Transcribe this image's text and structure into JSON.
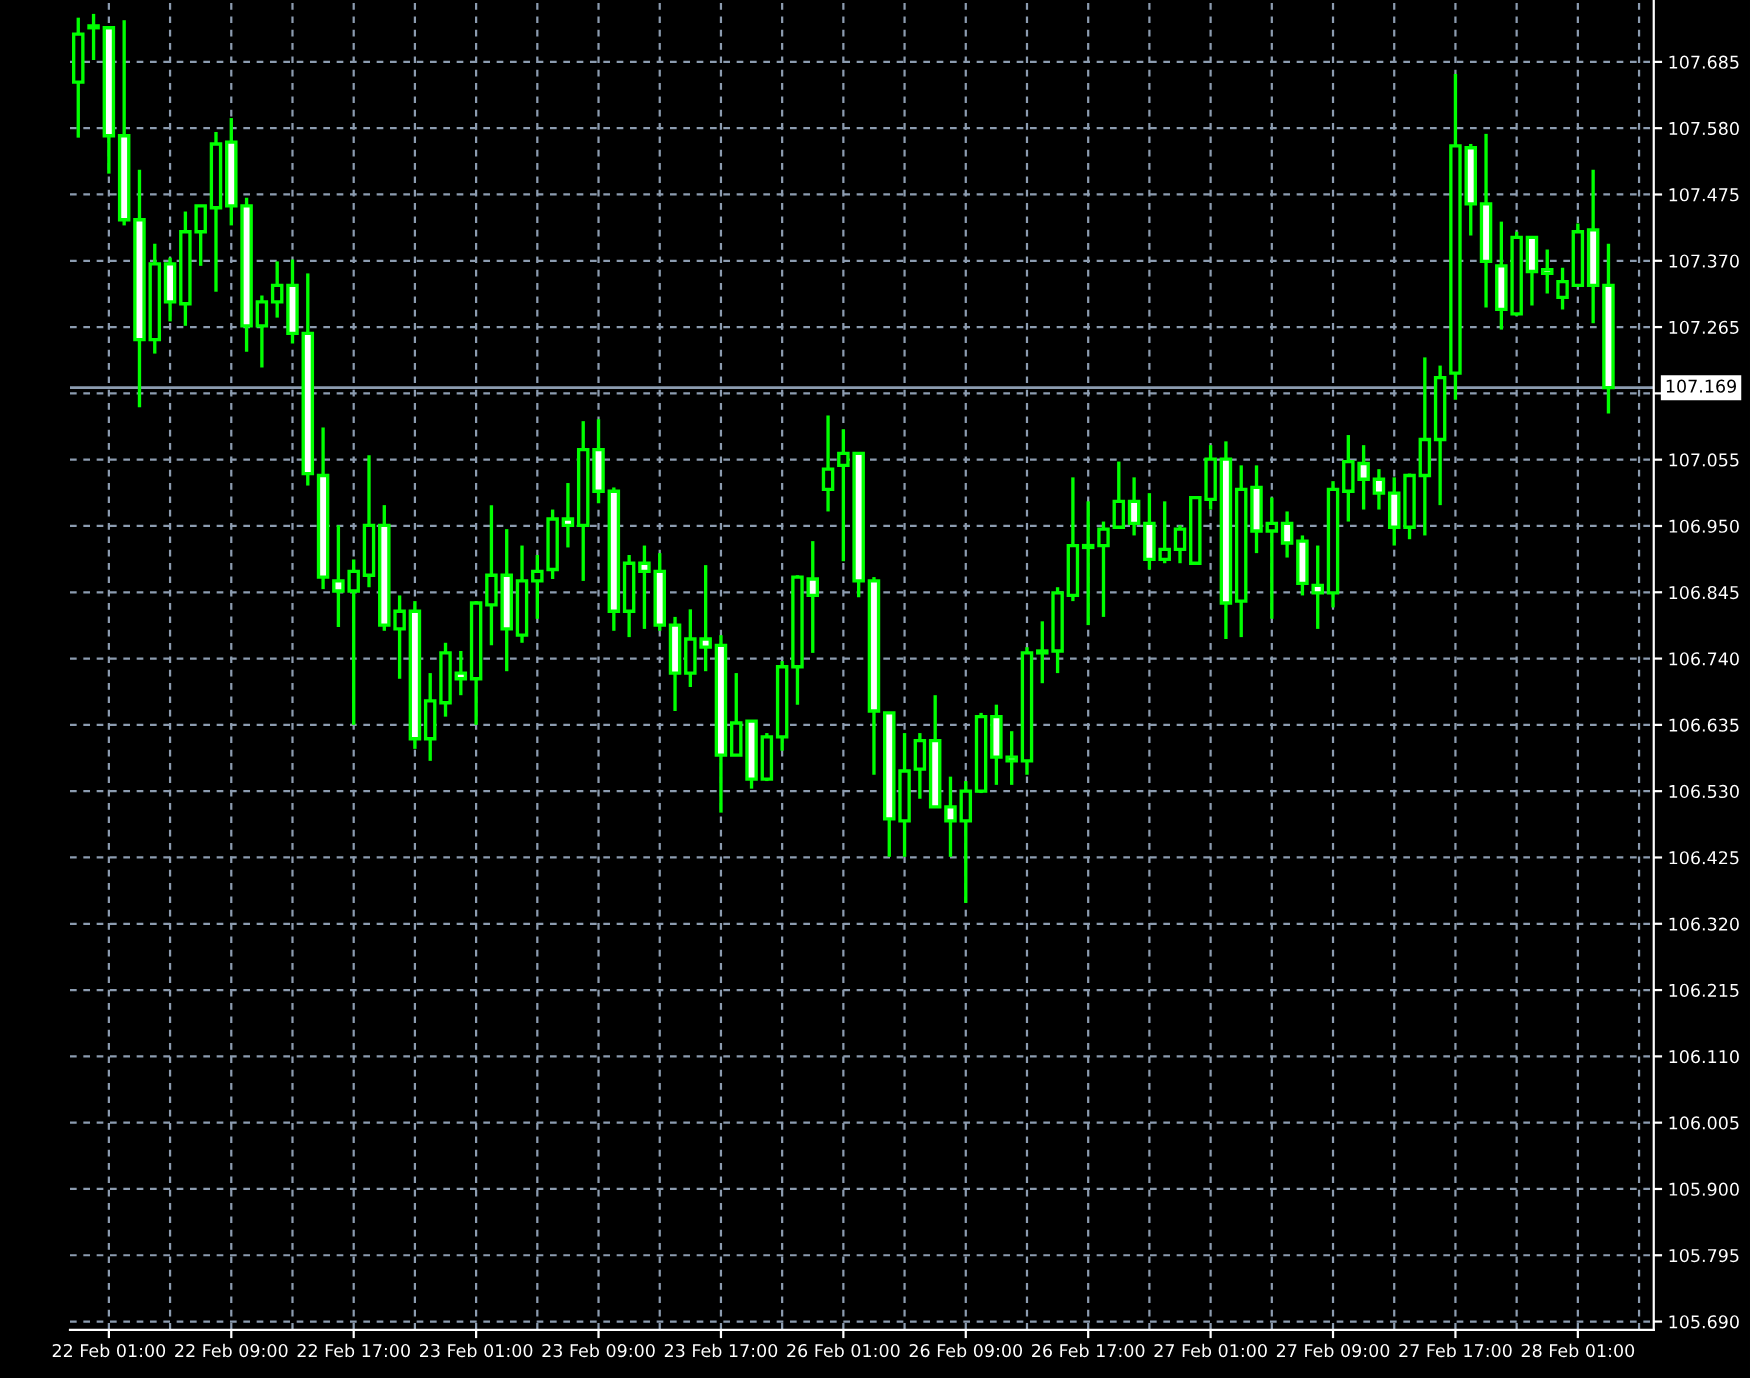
{
  "chart_data": {
    "type": "candlestick",
    "categories": [
      null,
      null,
      "22 Feb 01:00",
      null,
      null,
      null,
      null,
      null,
      null,
      null,
      "22 Feb 09:00",
      null,
      null,
      null,
      null,
      null,
      null,
      null,
      "22 Feb 17:00",
      null,
      null,
      null,
      null,
      null,
      null,
      null,
      "23 Feb 01:00",
      null,
      null,
      null,
      null,
      null,
      null,
      null,
      "23 Feb 09:00",
      null,
      null,
      null,
      null,
      null,
      null,
      null,
      "23 Feb 17:00",
      null,
      null,
      null,
      null,
      null,
      null,
      null,
      "26 Feb 01:00",
      null,
      null,
      null,
      null,
      null,
      null,
      null,
      "26 Feb 09:00",
      null,
      null,
      null,
      null,
      null,
      null,
      null,
      "26 Feb 17:00",
      null,
      null,
      null,
      null,
      null,
      null,
      null,
      "27 Feb 01:00",
      null,
      null,
      null,
      null,
      null,
      null,
      null,
      "27 Feb 09:00",
      null,
      null,
      null,
      null,
      null,
      null,
      null,
      "27 Feb 17:00",
      null,
      null,
      null,
      null,
      null,
      null,
      null,
      "28 Feb 01:00",
      null,
      null
    ],
    "ohlc": [
      [
        107.653,
        107.755,
        107.565,
        107.729
      ],
      [
        107.742,
        107.761,
        107.688,
        107.739
      ],
      [
        107.739,
        107.739,
        107.508,
        107.568
      ],
      [
        107.568,
        107.751,
        107.426,
        107.435
      ],
      [
        107.435,
        107.514,
        107.138,
        107.245
      ],
      [
        107.245,
        107.397,
        107.223,
        107.365
      ],
      [
        107.365,
        107.375,
        107.274,
        107.305
      ],
      [
        107.302,
        107.448,
        107.267,
        107.416
      ],
      [
        107.416,
        107.457,
        107.362,
        107.457
      ],
      [
        107.454,
        107.574,
        107.321,
        107.555
      ],
      [
        107.558,
        107.596,
        107.426,
        107.457
      ],
      [
        107.457,
        107.47,
        107.226,
        107.267
      ],
      [
        107.267,
        107.315,
        107.201,
        107.305
      ],
      [
        107.305,
        107.369,
        107.28,
        107.331
      ],
      [
        107.331,
        107.372,
        107.239,
        107.255
      ],
      [
        107.255,
        107.35,
        107.014,
        107.033
      ],
      [
        107.03,
        107.106,
        106.85,
        106.869
      ],
      [
        106.863,
        106.951,
        106.79,
        106.847
      ],
      [
        106.847,
        106.897,
        106.635,
        106.878
      ],
      [
        106.872,
        107.062,
        106.853,
        106.951
      ],
      [
        106.951,
        106.983,
        106.784,
        106.793
      ],
      [
        106.787,
        106.84,
        106.708,
        106.815
      ],
      [
        106.815,
        106.831,
        106.597,
        106.613
      ],
      [
        106.613,
        106.717,
        106.578,
        106.673
      ],
      [
        106.67,
        106.765,
        106.648,
        106.749
      ],
      [
        106.717,
        106.752,
        106.682,
        106.708
      ],
      [
        106.708,
        106.831,
        106.635,
        106.828
      ],
      [
        106.825,
        106.983,
        106.761,
        106.872
      ],
      [
        106.872,
        106.945,
        106.72,
        106.787
      ],
      [
        106.777,
        106.919,
        106.765,
        106.863
      ],
      [
        106.863,
        106.904,
        106.803,
        106.878
      ],
      [
        106.881,
        106.976,
        106.866,
        106.961
      ],
      [
        106.961,
        107.018,
        106.916,
        106.951
      ],
      [
        106.951,
        107.116,
        106.863,
        107.071
      ],
      [
        107.071,
        107.119,
        106.986,
        107.005
      ],
      [
        107.005,
        107.011,
        106.784,
        106.815
      ],
      [
        106.815,
        106.904,
        106.774,
        106.891
      ],
      [
        106.891,
        106.919,
        106.787,
        106.878
      ],
      [
        106.878,
        106.907,
        106.784,
        106.793
      ],
      [
        106.793,
        106.806,
        106.657,
        106.717
      ],
      [
        106.717,
        106.818,
        106.695,
        106.771
      ],
      [
        106.771,
        106.888,
        106.72,
        106.758
      ],
      [
        106.761,
        106.777,
        106.496,
        106.587
      ],
      [
        106.587,
        106.717,
        106.587,
        106.638
      ],
      [
        106.641,
        106.641,
        106.534,
        106.549
      ],
      [
        106.549,
        106.622,
        106.546,
        106.616
      ],
      [
        106.616,
        106.736,
        106.594,
        106.727
      ],
      [
        106.727,
        106.872,
        106.667,
        106.869
      ],
      [
        106.866,
        106.926,
        106.749,
        106.84
      ],
      [
        107.008,
        107.125,
        106.973,
        107.04
      ],
      [
        107.046,
        107.103,
        106.894,
        107.065
      ],
      [
        107.065,
        107.065,
        106.837,
        106.863
      ],
      [
        106.863,
        106.869,
        106.556,
        106.657
      ],
      [
        106.654,
        106.654,
        106.426,
        106.486
      ],
      [
        106.483,
        106.622,
        106.426,
        106.562
      ],
      [
        106.565,
        106.622,
        106.518,
        106.61
      ],
      [
        106.61,
        106.682,
        106.505,
        106.505
      ],
      [
        106.505,
        106.553,
        106.426,
        106.483
      ],
      [
        106.483,
        106.546,
        106.353,
        106.53
      ],
      [
        106.53,
        106.654,
        106.527,
        106.648
      ],
      [
        106.648,
        106.667,
        106.54,
        106.584
      ],
      [
        106.584,
        106.625,
        106.54,
        106.578
      ],
      [
        106.578,
        106.758,
        106.556,
        106.749
      ],
      [
        106.749,
        106.799,
        106.701,
        106.752
      ],
      [
        106.752,
        106.853,
        106.717,
        106.844
      ],
      [
        106.84,
        107.027,
        106.831,
        106.919
      ],
      [
        106.919,
        106.989,
        106.793,
        106.916
      ],
      [
        106.919,
        106.957,
        106.806,
        106.945
      ],
      [
        106.948,
        107.052,
        106.948,
        106.989
      ],
      [
        106.989,
        107.027,
        106.935,
        106.954
      ],
      [
        106.954,
        107.002,
        106.881,
        106.897
      ],
      [
        106.897,
        106.989,
        106.891,
        106.913
      ],
      [
        106.913,
        106.951,
        106.891,
        106.945
      ],
      [
        106.891,
        106.995,
        106.891,
        106.995
      ],
      [
        106.992,
        107.078,
        106.976,
        107.056
      ],
      [
        107.056,
        107.084,
        106.771,
        106.828
      ],
      [
        106.831,
        107.046,
        106.774,
        107.008
      ],
      [
        107.011,
        107.046,
        106.907,
        106.942
      ],
      [
        106.942,
        106.995,
        106.803,
        106.954
      ],
      [
        106.954,
        106.973,
        106.9,
        106.923
      ],
      [
        106.926,
        106.935,
        106.84,
        106.859
      ],
      [
        106.856,
        106.919,
        106.787,
        106.844
      ],
      [
        106.844,
        107.021,
        106.821,
        107.008
      ],
      [
        107.005,
        107.094,
        106.957,
        107.052
      ],
      [
        107.049,
        107.078,
        106.976,
        107.024
      ],
      [
        107.024,
        107.04,
        106.976,
        107.002
      ],
      [
        107.002,
        107.027,
        106.919,
        106.948
      ],
      [
        106.948,
        107.033,
        106.929,
        107.03
      ],
      [
        107.03,
        107.217,
        106.935,
        107.087
      ],
      [
        107.087,
        107.204,
        106.983,
        107.185
      ],
      [
        107.192,
        107.666,
        107.15,
        107.552
      ],
      [
        107.549,
        107.555,
        107.41,
        107.46
      ],
      [
        107.46,
        107.571,
        107.296,
        107.369
      ],
      [
        107.362,
        107.432,
        107.261,
        107.293
      ],
      [
        107.286,
        107.416,
        107.283,
        107.407
      ],
      [
        107.407,
        107.407,
        107.299,
        107.353
      ],
      [
        107.356,
        107.388,
        107.318,
        107.35
      ],
      [
        107.312,
        107.359,
        107.293,
        107.337
      ],
      [
        107.331,
        107.429,
        107.331,
        107.416
      ],
      [
        107.419,
        107.514,
        107.271,
        107.331
      ],
      [
        107.331,
        107.397,
        107.128,
        107.169
      ]
    ],
    "color": "#00ff00",
    "ylim": [
      105.677,
      107.783
    ],
    "yticks": [
      {
        "value": 105.69,
        "label": "105.690"
      },
      {
        "value": 105.795,
        "label": "105.795"
      },
      {
        "value": 105.9,
        "label": "105.900"
      },
      {
        "value": 106.005,
        "label": "106.005"
      },
      {
        "value": 106.11,
        "label": "106.110"
      },
      {
        "value": 106.215,
        "label": "106.215"
      },
      {
        "value": 106.32,
        "label": "106.320"
      },
      {
        "value": 106.425,
        "label": "106.425"
      },
      {
        "value": 106.53,
        "label": "106.530"
      },
      {
        "value": 106.635,
        "label": "106.635"
      },
      {
        "value": 106.74,
        "label": "106.740"
      },
      {
        "value": 106.845,
        "label": "106.845"
      },
      {
        "value": 106.95,
        "label": "106.950"
      },
      {
        "value": 107.055,
        "label": "107.055"
      },
      {
        "value": 107.16,
        "label": null
      },
      {
        "value": 107.265,
        "label": "107.265"
      },
      {
        "value": 107.37,
        "label": "107.370"
      },
      {
        "value": 107.475,
        "label": "107.475"
      },
      {
        "value": 107.58,
        "label": "107.580"
      },
      {
        "value": 107.685,
        "label": "107.685"
      }
    ],
    "ref_lines": [
      {
        "axis": "y",
        "value": 107.169,
        "label": "107.169",
        "color": "#8c9cb0"
      }
    ],
    "grid": true,
    "legend": false
  }
}
